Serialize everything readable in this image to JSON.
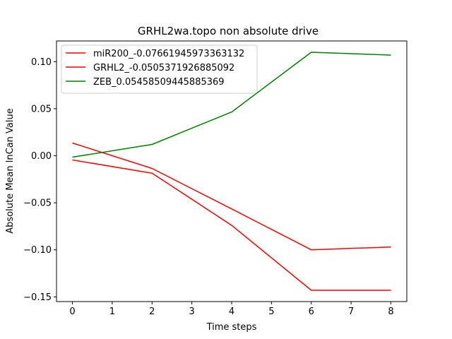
{
  "chart_data": {
    "type": "line",
    "title": "GRHL2wa.topo non absolute drive",
    "xlabel": "Time steps",
    "ylabel": "Absolute Mean lnCan Value",
    "xlim": [
      -0.4,
      8.4
    ],
    "ylim": [
      -0.155,
      0.122
    ],
    "xticks": [
      0,
      1,
      2,
      3,
      4,
      5,
      6,
      7,
      8
    ],
    "xtick_labels": [
      "0",
      "1",
      "2",
      "3",
      "4",
      "5",
      "6",
      "7",
      "8"
    ],
    "yticks": [
      -0.15,
      -0.1,
      -0.05,
      0.0,
      0.05,
      0.1
    ],
    "ytick_labels": [
      "−0.15",
      "−0.10",
      "−0.05",
      "0.00",
      "0.05",
      "0.10"
    ],
    "grid": false,
    "legend_position": "top-left",
    "x": [
      0,
      2,
      4,
      6,
      8
    ],
    "series": [
      {
        "name": "miR200_-0.07661945973363132",
        "color": "#ff0000",
        "values": [
          0.0135,
          -0.0135,
          -0.0565,
          -0.1,
          -0.097
        ]
      },
      {
        "name": "GRHL2_-0.0505371926885092",
        "color": "#ff0000",
        "values": [
          -0.0045,
          -0.0185,
          -0.074,
          -0.143,
          -0.143
        ]
      },
      {
        "name": "ZEB_0.05458509445885369",
        "color": "#008000",
        "values": [
          -0.0015,
          0.012,
          0.0465,
          0.11,
          0.107
        ]
      }
    ]
  }
}
